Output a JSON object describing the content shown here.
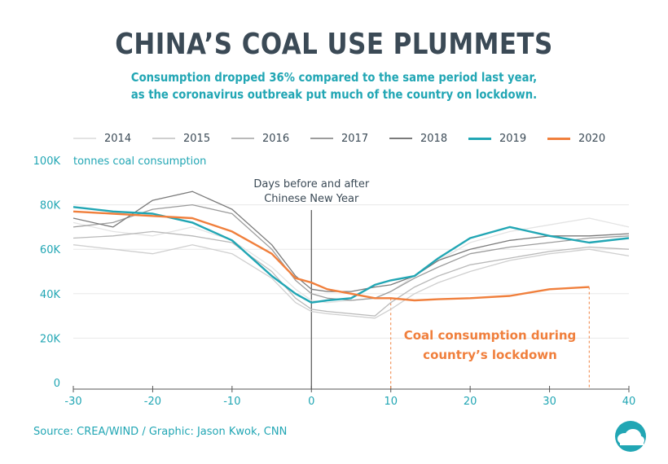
{
  "header": {
    "title": "CHINA’S COAL USE PLUMMETS",
    "subtitle_line1": "Consumption dropped 36% compared to the same period last year,",
    "subtitle_line2": "as the coronavirus outbreak put much of the country on lockdown."
  },
  "footer": {
    "source": "Source: CREA/WIND / Graphic: Jason Kwok, CNN"
  },
  "colors": {
    "accent": "#21a6b4",
    "highlight": "#f07f3c",
    "text": "#3b4a56"
  },
  "icons": {
    "logo": "cloud-logo-icon"
  },
  "chart_data": {
    "type": "line",
    "ylabel": "tonnes coal consumption",
    "xlim": [
      -30,
      40
    ],
    "ylim": [
      0,
      100000
    ],
    "x_ticks": [
      "-30",
      "-20",
      "-10",
      "0",
      "10",
      "20",
      "30",
      "40"
    ],
    "y_ticks": [
      "0",
      "20K",
      "40K",
      "60K",
      "80K",
      "100K"
    ],
    "grid": "horizontal",
    "legend": "top",
    "annotations": {
      "vline_label_line1": "Days before and after",
      "vline_label_line2": "Chinese New Year",
      "lockdown_label_line1": "Coal consumption during",
      "lockdown_label_line2": "country’s lockdown",
      "lockdown_range": [
        10,
        35
      ]
    },
    "x": [
      -30,
      -25,
      -20,
      -15,
      -10,
      -5,
      -2,
      0,
      2,
      5,
      8,
      10,
      13,
      16,
      20,
      25,
      30,
      35,
      40
    ],
    "series": [
      {
        "name": "2014",
        "color": "#e3e3e3",
        "values": [
          72000,
          68000,
          66000,
          70000,
          64000,
          52000,
          42000,
          37000,
          36000,
          37000,
          38000,
          41000,
          48000,
          55000,
          63000,
          68000,
          71000,
          74000,
          70000
        ]
      },
      {
        "name": "2015",
        "color": "#cfcfcf",
        "values": [
          62000,
          60000,
          58000,
          62000,
          58000,
          47000,
          36000,
          32000,
          31000,
          30000,
          29000,
          33000,
          40000,
          45000,
          50000,
          55000,
          58000,
          60000,
          57000
        ]
      },
      {
        "name": "2016",
        "color": "#b9b9b9",
        "values": [
          65000,
          66000,
          68000,
          66000,
          63000,
          50000,
          38000,
          33000,
          32000,
          31000,
          30000,
          36000,
          43000,
          48000,
          53000,
          56000,
          59000,
          61000,
          60000
        ]
      },
      {
        "name": "2017",
        "color": "#9c9c9c",
        "values": [
          70000,
          72000,
          78000,
          80000,
          76000,
          60000,
          46000,
          40000,
          38000,
          37000,
          38000,
          41000,
          47000,
          52000,
          58000,
          61000,
          63000,
          65000,
          66000
        ]
      },
      {
        "name": "2018",
        "color": "#7a7a7a",
        "values": [
          74000,
          70000,
          82000,
          86000,
          78000,
          62000,
          48000,
          42000,
          41000,
          41000,
          43000,
          44000,
          48000,
          55000,
          60000,
          64000,
          66000,
          66000,
          67000
        ]
      },
      {
        "name": "2019",
        "color": "#21a6b4",
        "values": [
          79000,
          77000,
          76000,
          72000,
          64000,
          48000,
          40000,
          36000,
          37000,
          38000,
          44000,
          46000,
          48000,
          56000,
          65000,
          70000,
          66000,
          63000,
          65000
        ]
      },
      {
        "name": "2020",
        "color": "#f07f3c",
        "values": [
          77000,
          76000,
          75000,
          74000,
          68000,
          58000,
          47000,
          45000,
          42000,
          40000,
          38000,
          38000,
          37000,
          37500,
          38000,
          39000,
          42000,
          43000,
          null
        ]
      }
    ]
  }
}
